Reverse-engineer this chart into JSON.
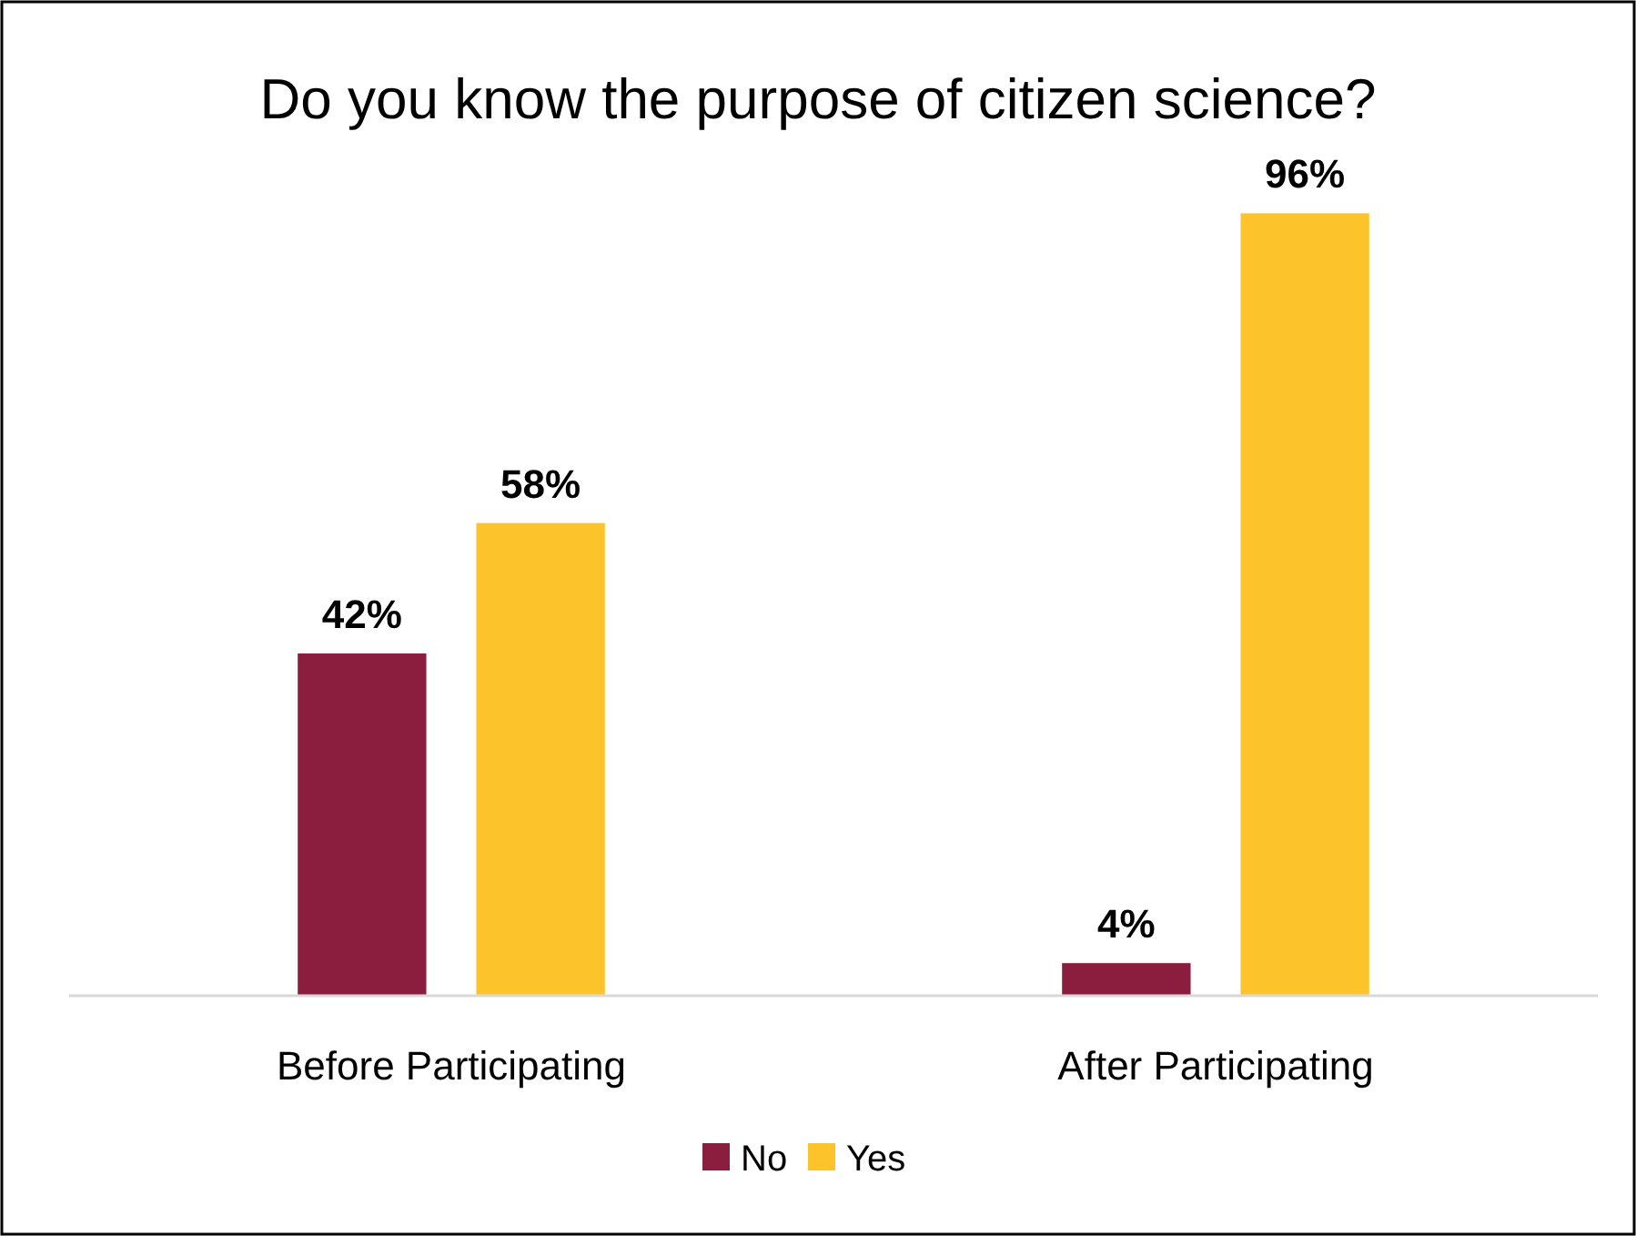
{
  "chart_data": {
    "type": "bar",
    "title": "Do you know the purpose of citizen science?",
    "categories": [
      "Before Participating",
      "After Participating"
    ],
    "series": [
      {
        "name": "No",
        "color": "#8b1e3f",
        "values": [
          42,
          4
        ],
        "value_labels": [
          "42%",
          "4%"
        ]
      },
      {
        "name": "Yes",
        "color": "#fcc42a",
        "values": [
          58,
          96
        ],
        "value_labels": [
          "58%",
          "96%"
        ]
      }
    ],
    "legend": "bottom"
  }
}
